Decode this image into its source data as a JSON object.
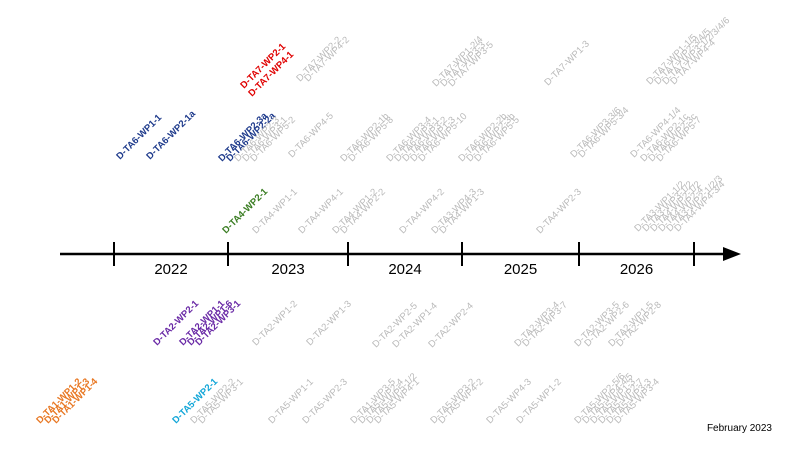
{
  "date_note": "February 2023",
  "colors": {
    "axis": "#000000",
    "gray": "#b9b9b9",
    "navy": "#1f3b8c",
    "red": "#e00000",
    "green": "#3a7d22",
    "purple": "#6a2aa6",
    "orange": "#e87722",
    "cyan": "#12a6d8"
  },
  "timeline": {
    "years": [
      "2022",
      "2023",
      "2024",
      "2025",
      "2026"
    ]
  },
  "deliverables": [
    {
      "label": "D-TA7-WP2-1",
      "color": "red"
    },
    {
      "label": "D-TA7-WP4-1",
      "color": "red"
    },
    {
      "label": "D-TA7-WP2-2",
      "color": "gray"
    },
    {
      "label": "D-TA7-WP4-2",
      "color": "gray"
    },
    {
      "label": "D-TA7-WP1-2/4",
      "color": "gray"
    },
    {
      "label": "D-TA7-WP3-3",
      "color": "gray"
    },
    {
      "label": "D-TA7-WP3-5",
      "color": "gray"
    },
    {
      "label": "D-TA7-WP1-3",
      "color": "gray"
    },
    {
      "label": "D-TA7-WP1-1/5",
      "color": "gray"
    },
    {
      "label": "D-TA7-WP2-3/4/5",
      "color": "gray"
    },
    {
      "label": "D-TA7-WP3-1/2/3/4/6",
      "color": "gray"
    },
    {
      "label": "D-TA7-WP4-4",
      "color": "gray"
    },
    {
      "label": "D-TA6-WP1-1",
      "color": "navy"
    },
    {
      "label": "D-TA6-WP2-1a",
      "color": "navy"
    },
    {
      "label": "D-TA6-WP2-3a",
      "color": "navy"
    },
    {
      "label": "D-TA6-WP2-2a",
      "color": "navy"
    },
    {
      "label": "D-TA6-WP2-3",
      "color": "gray"
    },
    {
      "label": "D-TA6-WP3-1",
      "color": "gray"
    },
    {
      "label": "D-TA6-WP5-2",
      "color": "gray"
    },
    {
      "label": "D-TA6-WP4-5",
      "color": "gray"
    },
    {
      "label": "D-TA6-WP2-1b",
      "color": "gray"
    },
    {
      "label": "D-TA6-WP5-8",
      "color": "gray"
    },
    {
      "label": "D-TA6-WP3-4",
      "color": "gray"
    },
    {
      "label": "D-TA6-WP3-1",
      "color": "gray"
    },
    {
      "label": "D-TA6-WP3-2",
      "color": "gray"
    },
    {
      "label": "D-TA6-WP1-3",
      "color": "gray"
    },
    {
      "label": "D-TA6-WP5-10",
      "color": "gray"
    },
    {
      "label": "D-TA6-WP2-2b",
      "color": "gray"
    },
    {
      "label": "D-TA6-WP2-3b",
      "color": "gray"
    },
    {
      "label": "D-TA6-WP5-5",
      "color": "gray"
    },
    {
      "label": "D-TA6-WP3-3/6",
      "color": "gray"
    },
    {
      "label": "D-TA6-WP5-3/4",
      "color": "gray"
    },
    {
      "label": "D-TA6-WP4-1/4",
      "color": "gray"
    },
    {
      "label": "D-TA6-WP2-1c",
      "color": "gray"
    },
    {
      "label": "D-TA6-WP2-3c",
      "color": "gray"
    },
    {
      "label": "D-TA6-WP5-7",
      "color": "gray"
    },
    {
      "label": "D-TA4-WP2-1",
      "color": "green"
    },
    {
      "label": "D-TA4-WP1-1",
      "color": "gray"
    },
    {
      "label": "D-TA4-WP4-1",
      "color": "gray"
    },
    {
      "label": "D-TA4-WP1-2",
      "color": "gray"
    },
    {
      "label": "D-TA4-WP2-2",
      "color": "gray"
    },
    {
      "label": "D-TA4-WP4-2",
      "color": "gray"
    },
    {
      "label": "D-TA3-WP4-3",
      "color": "gray"
    },
    {
      "label": "D-TA4-WP1-3",
      "color": "gray"
    },
    {
      "label": "D-TA4-WP2-3",
      "color": "gray"
    },
    {
      "label": "D-TA3-WP1-1/2",
      "color": "gray"
    },
    {
      "label": "D-TA3-WP3-1/2",
      "color": "gray"
    },
    {
      "label": "D-TA4-WP2-1/2",
      "color": "gray"
    },
    {
      "label": "D-TA4-WP2-4",
      "color": "gray"
    },
    {
      "label": "D-TA3-WP2-1/2/3",
      "color": "gray"
    },
    {
      "label": "D-TA4-WP4-3/4",
      "color": "gray"
    },
    {
      "label": "D-TA2-WP2-1",
      "color": "purple"
    },
    {
      "label": "D-TA2-WP1-1",
      "color": "purple"
    },
    {
      "label": "D-TA2-WP1-6",
      "color": "purple"
    },
    {
      "label": "D-TA2-WP3-1",
      "color": "purple"
    },
    {
      "label": "D-TA2-WP1-2",
      "color": "gray"
    },
    {
      "label": "D-TA2-WP1-3",
      "color": "gray"
    },
    {
      "label": "D-TA2-WP2-5",
      "color": "gray"
    },
    {
      "label": "D-TA2-WP1-4",
      "color": "gray"
    },
    {
      "label": "D-TA2-WP2-4",
      "color": "gray"
    },
    {
      "label": "D-TA2-WP3-4",
      "color": "gray"
    },
    {
      "label": "D-TA2-WP3-7",
      "color": "gray"
    },
    {
      "label": "D-TA2-WP3-5",
      "color": "gray"
    },
    {
      "label": "D-TA2-WP2-6",
      "color": "gray"
    },
    {
      "label": "D-TA2-WP1-5",
      "color": "gray"
    },
    {
      "label": "D-TA2-WP2-8",
      "color": "gray"
    },
    {
      "label": "D-TA1-WP1-2",
      "color": "orange"
    },
    {
      "label": "D-TA1-WP1-3",
      "color": "orange"
    },
    {
      "label": "D-TA1-WP1-4",
      "color": "orange"
    },
    {
      "label": "D-TA5-WP2-1",
      "color": "cyan"
    },
    {
      "label": "D-TA5-WP2-2",
      "color": "gray"
    },
    {
      "label": "D-TA5-WP3-1",
      "color": "gray"
    },
    {
      "label": "D-TA5-WP1-1",
      "color": "gray"
    },
    {
      "label": "D-TA5-WP2-3",
      "color": "gray"
    },
    {
      "label": "D-TA1-WP3-5",
      "color": "gray"
    },
    {
      "label": "D-TA5-WP2-4",
      "color": "gray"
    },
    {
      "label": "D-TA5-WP5-1/2",
      "color": "gray"
    },
    {
      "label": "D-TA5-WP4-1",
      "color": "gray"
    },
    {
      "label": "D-TA5-WP3-2",
      "color": "gray"
    },
    {
      "label": "D-TA5-WP4-2",
      "color": "gray"
    },
    {
      "label": "D-TA5-WP4-3",
      "color": "gray"
    },
    {
      "label": "D-TA5-WP1-2",
      "color": "gray"
    },
    {
      "label": "D-TA5-WP2-5/6",
      "color": "gray"
    },
    {
      "label": "D-TA5-WP4-4/5",
      "color": "gray"
    },
    {
      "label": "D-TA5-WP1-3",
      "color": "gray"
    },
    {
      "label": "D-TA5-WP2-7",
      "color": "gray"
    },
    {
      "label": "D-TA5-WP3-3",
      "color": "gray"
    },
    {
      "label": "D-TA5-WP3-4",
      "color": "gray"
    }
  ]
}
